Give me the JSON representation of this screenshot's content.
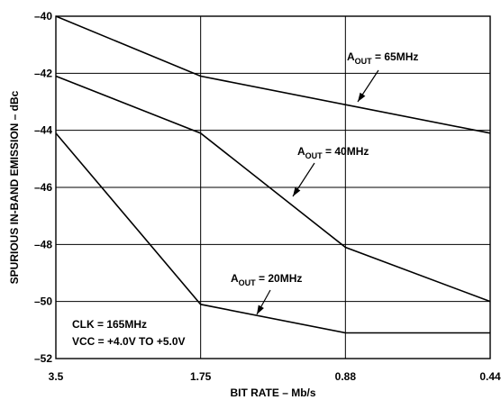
{
  "chart_data": {
    "type": "line",
    "xlabel": "BIT RATE – Mb/s",
    "ylabel": "SPURIOUS IN-BAND EMISSION – dBc",
    "categories": [
      "3.5",
      "1.75",
      "0.88",
      "0.44"
    ],
    "ylim": [
      -52,
      -40
    ],
    "yticks": [
      "–40",
      "–42",
      "–44",
      "–46",
      "–48",
      "–50",
      "–52"
    ],
    "grid": true,
    "series": [
      {
        "name_main": "A",
        "name_sub": "OUT",
        "name_rest": " = 65MHz",
        "values": [
          -40,
          -42.1,
          -43.1,
          -44.1
        ]
      },
      {
        "name_main": "A",
        "name_sub": "OUT",
        "name_rest": " = 40MHz",
        "values": [
          -42.1,
          -44.1,
          -48.1,
          -50
        ]
      },
      {
        "name_main": "A",
        "name_sub": "OUT",
        "name_rest": " = 20MHz",
        "values": [
          -44.1,
          -50.1,
          -51.1,
          -51.1
        ]
      }
    ],
    "annotations": [
      "CLK = 165MHz",
      "VCC = +4.0V TO +5.0V"
    ]
  }
}
